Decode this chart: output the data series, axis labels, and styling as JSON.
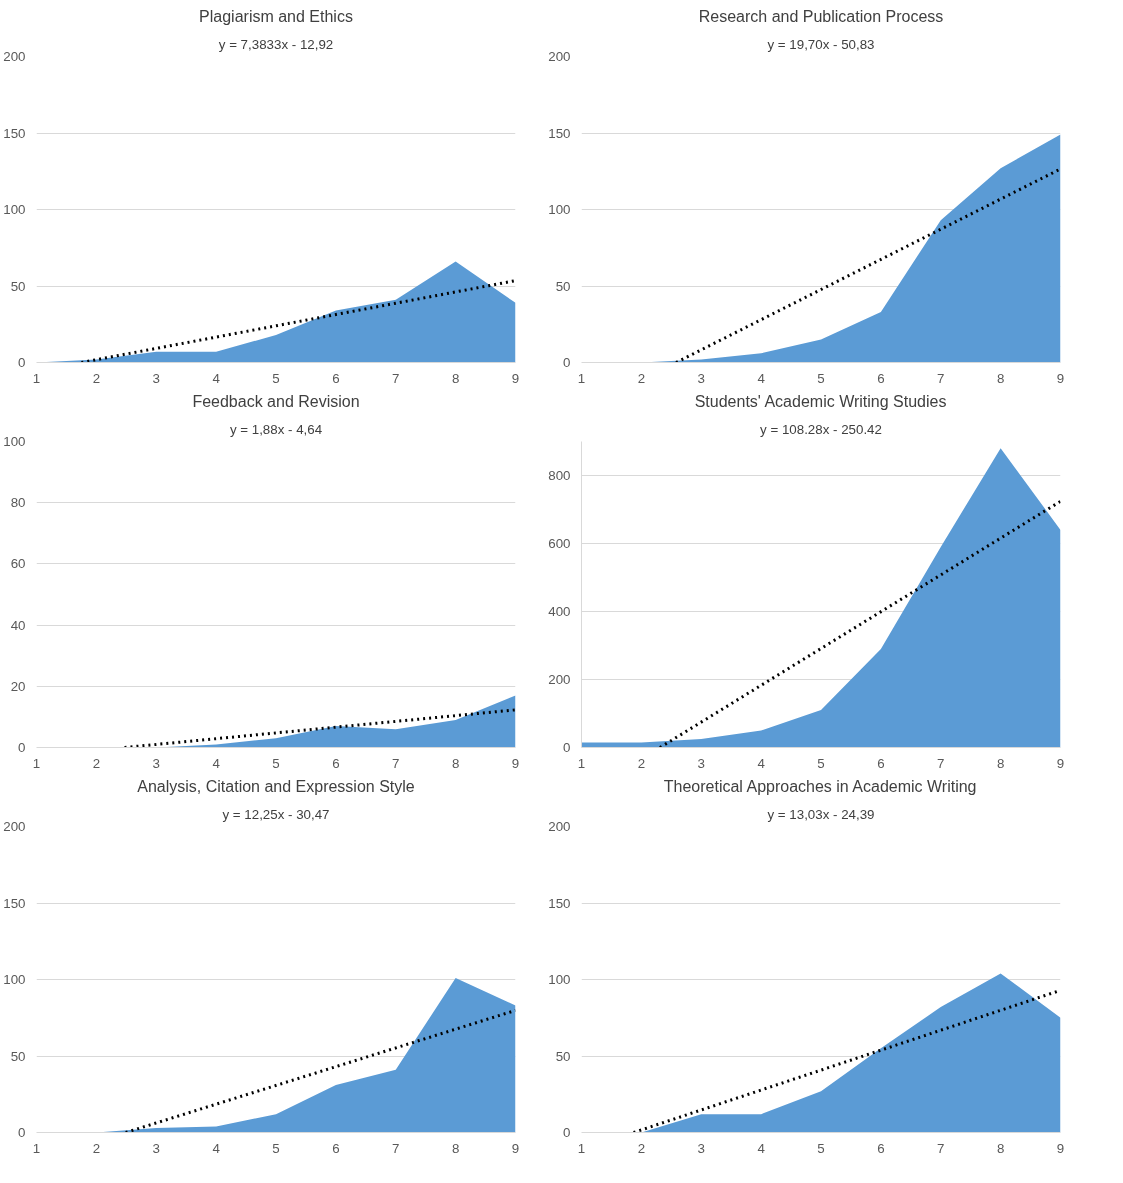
{
  "chart_data": [
    {
      "type": "area",
      "title": "Plagiarism and Ethics",
      "annotations": [
        "y = 7,3833x - 12,92"
      ],
      "x": [
        1,
        2,
        3,
        4,
        5,
        6,
        7,
        8,
        9
      ],
      "xlim": [
        1,
        9
      ],
      "xticks": [
        1,
        2,
        3,
        4,
        5,
        6,
        7,
        8,
        9
      ],
      "ylim": [
        0,
        200
      ],
      "yticks": [
        0,
        50,
        100,
        150,
        200
      ],
      "grid": "y",
      "series": [
        {
          "color": "#5b9bd5",
          "values": [
            0,
            2,
            7,
            7,
            18,
            34,
            41,
            66,
            39
          ]
        },
        {
          "type": "line",
          "color": "#000000",
          "line_style": "dotted",
          "x": [
            1.75,
            9
          ],
          "values": [
            0,
            53.5
          ]
        }
      ]
    },
    {
      "type": "area",
      "title": "Research and Publication Process",
      "annotations": [
        "y = 19,70x - 50,83"
      ],
      "x": [
        1,
        2,
        3,
        4,
        5,
        6,
        7,
        8,
        9
      ],
      "xlim": [
        1,
        9
      ],
      "xticks": [
        1,
        2,
        3,
        4,
        5,
        6,
        7,
        8,
        9
      ],
      "ylim": [
        0,
        200
      ],
      "yticks": [
        0,
        50,
        100,
        150,
        200
      ],
      "grid": "y",
      "series": [
        {
          "color": "#5b9bd5",
          "values": [
            0,
            0,
            2,
            6,
            15,
            33,
            93,
            127,
            149
          ]
        },
        {
          "type": "line",
          "color": "#000000",
          "line_style": "dotted",
          "x": [
            2.58,
            9
          ],
          "values": [
            0,
            126.5
          ]
        }
      ]
    },
    {
      "type": "area",
      "title": "Feedback and Revision",
      "annotations": [
        "y = 1,88x - 4,64"
      ],
      "x": [
        1,
        2,
        3,
        4,
        5,
        6,
        7,
        8,
        9
      ],
      "xlim": [
        1,
        9
      ],
      "xticks": [
        1,
        2,
        3,
        4,
        5,
        6,
        7,
        8,
        9
      ],
      "ylim": [
        0,
        100
      ],
      "yticks": [
        0,
        20,
        40,
        60,
        80,
        100
      ],
      "grid": "y",
      "series": [
        {
          "color": "#5b9bd5",
          "values": [
            0,
            0,
            0,
            1,
            3,
            7,
            6,
            9,
            17
          ]
        },
        {
          "type": "line",
          "color": "#000000",
          "line_style": "dotted",
          "x": [
            2.47,
            9
          ],
          "values": [
            0,
            12.3
          ]
        }
      ]
    },
    {
      "type": "area",
      "title": "Students' Academic Writing Studies",
      "annotations": [
        "y = 108.28x - 250.42"
      ],
      "x": [
        1,
        2,
        3,
        4,
        5,
        6,
        7,
        8,
        9
      ],
      "xlim": [
        1,
        9
      ],
      "xticks": [
        1,
        2,
        3,
        4,
        5,
        6,
        7,
        8,
        9
      ],
      "ylim": [
        0,
        900
      ],
      "yticks": [
        0,
        200,
        400,
        600,
        800
      ],
      "grid": "y",
      "series": [
        {
          "color": "#5b9bd5",
          "values": [
            15,
            15,
            25,
            50,
            110,
            290,
            590,
            880,
            640
          ]
        },
        {
          "type": "line",
          "color": "#000000",
          "line_style": "dotted",
          "x": [
            2.31,
            9
          ],
          "values": [
            0,
            724
          ]
        }
      ]
    },
    {
      "type": "area",
      "title": "Analysis, Citation and Expression Style",
      "annotations": [
        "y = 12,25x - 30,47"
      ],
      "x": [
        1,
        2,
        3,
        4,
        5,
        6,
        7,
        8,
        9
      ],
      "xlim": [
        1,
        9
      ],
      "xticks": [
        1,
        2,
        3,
        4,
        5,
        6,
        7,
        8,
        9
      ],
      "ylim": [
        0,
        200
      ],
      "yticks": [
        0,
        50,
        100,
        150,
        200
      ],
      "grid": "y",
      "series": [
        {
          "color": "#5b9bd5",
          "values": [
            0,
            0,
            3,
            4,
            12,
            31,
            41,
            101,
            83
          ]
        },
        {
          "type": "line",
          "color": "#000000",
          "line_style": "dotted",
          "x": [
            2.49,
            9
          ],
          "values": [
            0,
            79.8
          ]
        }
      ]
    },
    {
      "type": "area",
      "title": "Theoretical Approaches in Academic Writing",
      "annotations": [
        "y = 13,03x - 24,39"
      ],
      "x": [
        1,
        2,
        3,
        4,
        5,
        6,
        7,
        8,
        9
      ],
      "xlim": [
        1,
        9
      ],
      "xticks": [
        1,
        2,
        3,
        4,
        5,
        6,
        7,
        8,
        9
      ],
      "ylim": [
        0,
        200
      ],
      "yticks": [
        0,
        50,
        100,
        150,
        200
      ],
      "grid": "y",
      "series": [
        {
          "color": "#5b9bd5",
          "values": [
            0,
            0,
            12,
            12,
            27,
            55,
            82,
            104,
            75
          ]
        },
        {
          "type": "line",
          "color": "#000000",
          "line_style": "dotted",
          "x": [
            1.87,
            9
          ],
          "values": [
            0,
            92.9
          ]
        }
      ]
    }
  ]
}
